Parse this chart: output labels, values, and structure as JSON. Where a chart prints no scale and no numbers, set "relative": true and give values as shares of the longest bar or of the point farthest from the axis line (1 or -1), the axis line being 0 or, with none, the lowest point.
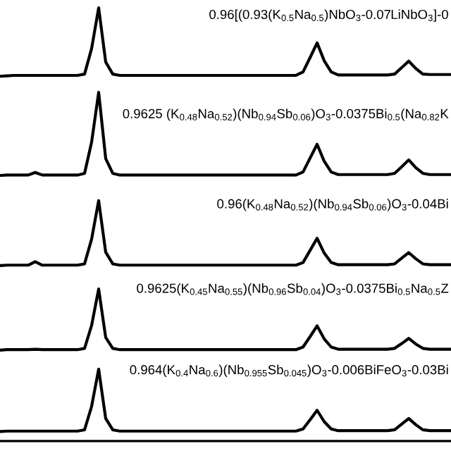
{
  "chart_data": {
    "type": "line",
    "relative": true,
    "categories": [
      null,
      null,
      null,
      null,
      null,
      null,
      null,
      null,
      null,
      null,
      null,
      null,
      null,
      null,
      null,
      null,
      null,
      null,
      null,
      null,
      null,
      null,
      null,
      null,
      null,
      null,
      null,
      null,
      null,
      null,
      null,
      null,
      null,
      null,
      null,
      null,
      null,
      null,
      null,
      null,
      null,
      null,
      null,
      null,
      null,
      null,
      null,
      null,
      null,
      null,
      null,
      null,
      null,
      null,
      null,
      null,
      null,
      null,
      null,
      null,
      null,
      null,
      null,
      null,
      null
    ],
    "series": [
      {
        "name": "0.96[(0.93(K$_{0.5}$Na$_{0.5}$)NbO$_{3}$-0.07LiNbO$_{3}$]-0",
        "color": "#000000",
        "values": [
          0.842,
          0.843,
          0.844,
          0.844,
          0.844,
          0.844,
          0.844,
          0.844,
          0.844,
          0.844,
          0.844,
          0.844,
          0.847,
          0.906,
          1.0,
          0.875,
          0.847,
          0.844,
          0.844,
          0.844,
          0.844,
          0.844,
          0.844,
          0.844,
          0.844,
          0.844,
          0.844,
          0.844,
          0.844,
          0.844,
          0.844,
          0.844,
          0.844,
          0.844,
          0.844,
          0.844,
          0.844,
          0.844,
          0.844,
          0.844,
          0.844,
          0.844,
          0.844,
          0.852,
          0.885,
          0.919,
          0.878,
          0.852,
          0.845,
          0.845,
          0.845,
          0.845,
          0.845,
          0.845,
          0.845,
          0.845,
          0.847,
          0.862,
          0.877,
          0.86,
          0.847,
          0.846,
          0.846,
          0.846,
          0.846
        ]
      },
      {
        "name": "0.9625 (K$_{0.48}$Na$_{0.52}$)(Nb$_{0.94}$Sb$_{0.06}$)O$_{3}$-0.0375Bi$_{0.5}$(Na$_{0.82}$K",
        "color": "#000000",
        "values": [
          0.613,
          0.614,
          0.614,
          0.614,
          0.614,
          0.62,
          0.614,
          0.614,
          0.614,
          0.614,
          0.614,
          0.614,
          0.618,
          0.69,
          0.805,
          0.652,
          0.618,
          0.614,
          0.614,
          0.614,
          0.614,
          0.614,
          0.614,
          0.614,
          0.614,
          0.614,
          0.614,
          0.614,
          0.614,
          0.614,
          0.614,
          0.614,
          0.614,
          0.614,
          0.614,
          0.614,
          0.614,
          0.614,
          0.614,
          0.614,
          0.614,
          0.614,
          0.614,
          0.621,
          0.653,
          0.685,
          0.646,
          0.621,
          0.615,
          0.615,
          0.615,
          0.615,
          0.615,
          0.615,
          0.615,
          0.615,
          0.618,
          0.633,
          0.649,
          0.631,
          0.618,
          0.615,
          0.615,
          0.615,
          0.615
        ]
      },
      {
        "name": "0.96(K$_{0.48}$Na$_{0.52}$)(Nb$_{0.94}$Sb$_{0.06}$)O$_{3}$-0.04Bi",
        "color": "#000000",
        "values": [
          0.405,
          0.406,
          0.406,
          0.406,
          0.406,
          0.414,
          0.406,
          0.406,
          0.406,
          0.406,
          0.406,
          0.406,
          0.409,
          0.466,
          0.555,
          0.436,
          0.409,
          0.406,
          0.406,
          0.406,
          0.406,
          0.406,
          0.406,
          0.406,
          0.406,
          0.406,
          0.406,
          0.406,
          0.406,
          0.406,
          0.406,
          0.406,
          0.406,
          0.406,
          0.406,
          0.406,
          0.406,
          0.406,
          0.406,
          0.406,
          0.406,
          0.406,
          0.406,
          0.412,
          0.44,
          0.468,
          0.434,
          0.412,
          0.407,
          0.407,
          0.407,
          0.407,
          0.407,
          0.407,
          0.407,
          0.407,
          0.409,
          0.422,
          0.435,
          0.421,
          0.409,
          0.407,
          0.407,
          0.407,
          0.407
        ]
      },
      {
        "name": "0.9625(K$_{0.45}$Na$_{0.55}$)(Nb$_{0.96}$Sb$_{0.04}$)O$_{3}$-0.0375Bi$_{0.5}$Na$_{0.5}$Z",
        "color": "#000000",
        "values": [
          0.21,
          0.211,
          0.211,
          0.211,
          0.211,
          0.212,
          0.211,
          0.211,
          0.211,
          0.211,
          0.211,
          0.211,
          0.214,
          0.267,
          0.351,
          0.239,
          0.214,
          0.211,
          0.211,
          0.211,
          0.211,
          0.211,
          0.211,
          0.211,
          0.211,
          0.211,
          0.211,
          0.211,
          0.211,
          0.211,
          0.211,
          0.211,
          0.211,
          0.211,
          0.211,
          0.211,
          0.211,
          0.211,
          0.211,
          0.211,
          0.211,
          0.211,
          0.211,
          0.217,
          0.241,
          0.266,
          0.236,
          0.217,
          0.212,
          0.212,
          0.212,
          0.212,
          0.212,
          0.212,
          0.212,
          0.212,
          0.214,
          0.225,
          0.237,
          0.224,
          0.214,
          0.212,
          0.212,
          0.212,
          0.212
        ]
      },
      {
        "name": "0.964(K$_{0.4}$Na$_{0.6}$)(Nb$_{0.955}$Sb$_{0.045}$)O$_{3}$-0.006BiFeO$_{3}$-0.03Bi",
        "color": "#000000",
        "values": [
          0.022,
          0.023,
          0.023,
          0.023,
          0.023,
          0.023,
          0.023,
          0.023,
          0.023,
          0.023,
          0.023,
          0.023,
          0.026,
          0.08,
          0.166,
          0.052,
          0.026,
          0.023,
          0.023,
          0.023,
          0.023,
          0.023,
          0.023,
          0.023,
          0.023,
          0.023,
          0.023,
          0.023,
          0.023,
          0.023,
          0.023,
          0.023,
          0.023,
          0.023,
          0.023,
          0.023,
          0.023,
          0.023,
          0.023,
          0.023,
          0.023,
          0.023,
          0.023,
          0.028,
          0.049,
          0.071,
          0.045,
          0.028,
          0.024,
          0.024,
          0.024,
          0.024,
          0.024,
          0.024,
          0.024,
          0.024,
          0.026,
          0.039,
          0.052,
          0.038,
          0.026,
          0.024,
          0.024,
          0.024,
          0.024
        ]
      }
    ]
  }
}
